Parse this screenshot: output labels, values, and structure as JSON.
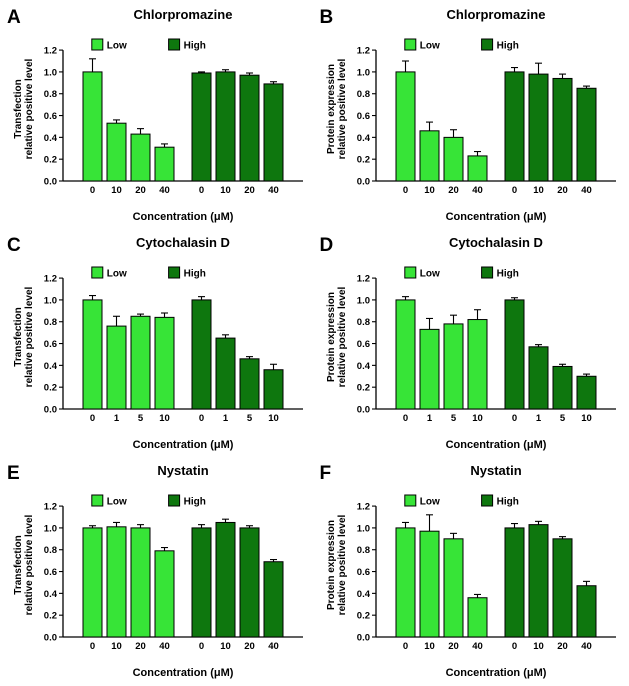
{
  "figure_meta": {
    "background": "#ffffff",
    "axis_color": "#000000",
    "ytick_labels": [
      "0.0",
      "0.2",
      "0.4",
      "0.6",
      "0.8",
      "1.0",
      "1.2"
    ],
    "legend_labels": [
      "Low",
      "High"
    ],
    "low_color": "#37e437",
    "high_color": "#0e770e"
  },
  "chart_data": [
    {
      "panel": "A",
      "type": "bar",
      "title": "Chlorpromazine",
      "ylabel_lines": [
        "Transfection",
        "relative positive level"
      ],
      "xlabel": "Concentration (μM)",
      "categories": [
        "0",
        "10",
        "20",
        "40"
      ],
      "ylim": [
        0,
        1.2
      ],
      "legend_position": "top-inside",
      "grid": false,
      "series": [
        {
          "name": "Low",
          "color": "#37e437",
          "values": [
            1.0,
            0.53,
            0.43,
            0.31
          ],
          "errors": [
            0.12,
            0.03,
            0.05,
            0.03
          ]
        },
        {
          "name": "High",
          "color": "#0e770e",
          "values": [
            0.99,
            1.0,
            0.97,
            0.89
          ],
          "errors": [
            0.01,
            0.02,
            0.02,
            0.02
          ]
        }
      ]
    },
    {
      "panel": "B",
      "type": "bar",
      "title": "Chlorpromazine",
      "ylabel_lines": [
        "Protein expression",
        "relative positive level"
      ],
      "xlabel": "Concentration (μM)",
      "categories": [
        "0",
        "10",
        "20",
        "40"
      ],
      "ylim": [
        0,
        1.2
      ],
      "legend_position": "top-inside",
      "grid": false,
      "series": [
        {
          "name": "Low",
          "color": "#37e437",
          "values": [
            1.0,
            0.46,
            0.4,
            0.23
          ],
          "errors": [
            0.1,
            0.08,
            0.07,
            0.04
          ]
        },
        {
          "name": "High",
          "color": "#0e770e",
          "values": [
            1.0,
            0.98,
            0.94,
            0.85
          ],
          "errors": [
            0.04,
            0.1,
            0.04,
            0.02
          ]
        }
      ]
    },
    {
      "panel": "C",
      "type": "bar",
      "title": "Cytochalasin D",
      "ylabel_lines": [
        "Transfection",
        "relative positive level"
      ],
      "xlabel": "Concentration (μM)",
      "categories": [
        "0",
        "1",
        "5",
        "10"
      ],
      "ylim": [
        0,
        1.2
      ],
      "legend_position": "top-inside",
      "grid": false,
      "series": [
        {
          "name": "Low",
          "color": "#37e437",
          "values": [
            1.0,
            0.76,
            0.85,
            0.84
          ],
          "errors": [
            0.04,
            0.09,
            0.02,
            0.04
          ]
        },
        {
          "name": "High",
          "color": "#0e770e",
          "values": [
            1.0,
            0.65,
            0.46,
            0.36
          ],
          "errors": [
            0.03,
            0.03,
            0.02,
            0.05
          ]
        }
      ]
    },
    {
      "panel": "D",
      "type": "bar",
      "title": "Cytochalasin D",
      "ylabel_lines": [
        "Protein expression",
        "relative positive level"
      ],
      "xlabel": "Concentration (μM)",
      "categories": [
        "0",
        "1",
        "5",
        "10"
      ],
      "ylim": [
        0,
        1.2
      ],
      "legend_position": "top-inside",
      "grid": false,
      "series": [
        {
          "name": "Low",
          "color": "#37e437",
          "values": [
            1.0,
            0.73,
            0.78,
            0.82
          ],
          "errors": [
            0.03,
            0.1,
            0.08,
            0.09
          ]
        },
        {
          "name": "High",
          "color": "#0e770e",
          "values": [
            1.0,
            0.57,
            0.39,
            0.3
          ],
          "errors": [
            0.02,
            0.02,
            0.02,
            0.02
          ]
        }
      ]
    },
    {
      "panel": "E",
      "type": "bar",
      "title": "Nystatin",
      "ylabel_lines": [
        "Transfection",
        "relative positive level"
      ],
      "xlabel": "Concentration (μM)",
      "categories": [
        "0",
        "10",
        "20",
        "40"
      ],
      "ylim": [
        0,
        1.2
      ],
      "legend_position": "top-inside",
      "grid": false,
      "series": [
        {
          "name": "Low",
          "color": "#37e437",
          "values": [
            1.0,
            1.01,
            1.0,
            0.79
          ],
          "errors": [
            0.02,
            0.04,
            0.03,
            0.03
          ]
        },
        {
          "name": "High",
          "color": "#0e770e",
          "values": [
            1.0,
            1.05,
            1.0,
            0.69
          ],
          "errors": [
            0.03,
            0.03,
            0.02,
            0.02
          ]
        }
      ]
    },
    {
      "panel": "F",
      "type": "bar",
      "title": "Nystatin",
      "ylabel_lines": [
        "Protein expression",
        "relative positive level"
      ],
      "xlabel": "Concentration (μM)",
      "categories": [
        "0",
        "10",
        "20",
        "40"
      ],
      "ylim": [
        0,
        1.2
      ],
      "legend_position": "top-inside",
      "grid": false,
      "series": [
        {
          "name": "Low",
          "color": "#37e437",
          "values": [
            1.0,
            0.97,
            0.9,
            0.36
          ],
          "errors": [
            0.05,
            0.15,
            0.05,
            0.03
          ]
        },
        {
          "name": "High",
          "color": "#0e770e",
          "values": [
            1.0,
            1.03,
            0.9,
            0.47
          ],
          "errors": [
            0.04,
            0.03,
            0.02,
            0.04
          ]
        }
      ]
    }
  ]
}
